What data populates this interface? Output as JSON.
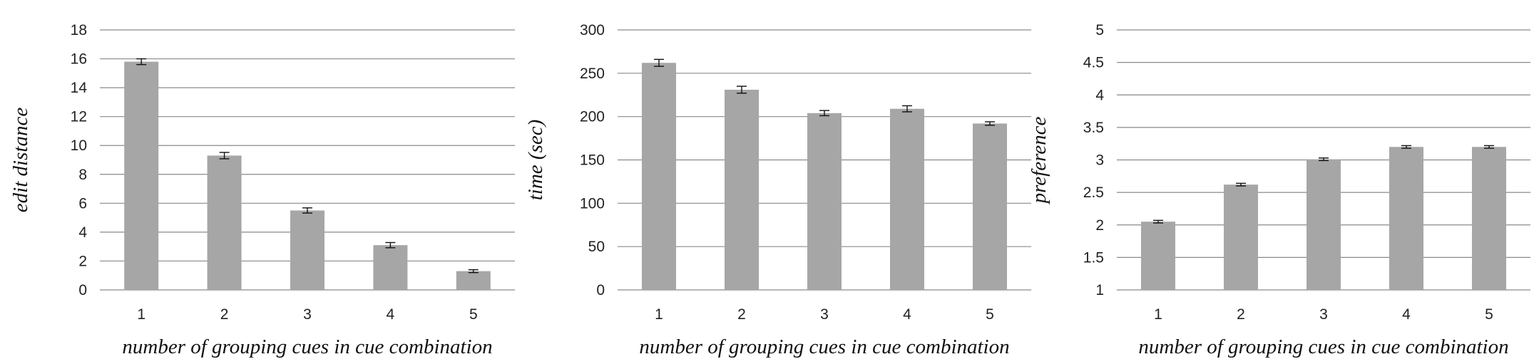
{
  "chart_data": [
    {
      "type": "bar",
      "categories": [
        "1",
        "2",
        "3",
        "4",
        "5"
      ],
      "values": [
        15.8,
        9.3,
        5.5,
        3.1,
        1.3
      ],
      "errors": [
        0.2,
        0.22,
        0.18,
        0.18,
        0.1
      ],
      "ylabel": "edit distance",
      "xlabel": "number of grouping cues in cue combination",
      "ylim": [
        0,
        18
      ],
      "yticks": [
        0,
        2,
        4,
        6,
        8,
        10,
        12,
        14,
        16,
        18
      ],
      "ytick_labels": [
        "0",
        "2",
        "4",
        "6",
        "8",
        "10",
        "12",
        "14",
        "16",
        "18"
      ],
      "grid": true,
      "bar_color": "#a6a6a6"
    },
    {
      "type": "bar",
      "categories": [
        "1",
        "2",
        "3",
        "4",
        "5"
      ],
      "values": [
        262,
        231,
        204,
        209,
        192
      ],
      "errors": [
        4,
        4,
        3,
        3.5,
        2
      ],
      "ylabel": "time (sec)",
      "xlabel": "number of grouping cues in cue combination",
      "ylim": [
        0,
        300
      ],
      "yticks": [
        0,
        50,
        100,
        150,
        200,
        250,
        300
      ],
      "ytick_labels": [
        "0",
        "50",
        "100",
        "150",
        "200",
        "250",
        "300"
      ],
      "grid": true,
      "bar_color": "#a6a6a6"
    },
    {
      "type": "bar",
      "categories": [
        "1",
        "2",
        "3",
        "4",
        "5"
      ],
      "values": [
        2.05,
        2.62,
        3.01,
        3.2,
        3.2
      ],
      "errors": [
        0.02,
        0.02,
        0.02,
        0.02,
        0.02
      ],
      "ylabel": "preference",
      "xlabel": "number of grouping cues in cue combination",
      "ylim": [
        1,
        5
      ],
      "yticks": [
        1,
        1.5,
        2,
        2.5,
        3,
        3.5,
        4,
        4.5,
        5
      ],
      "ytick_labels": [
        "1",
        "1.5",
        "2",
        "2.5",
        "3",
        "3.5",
        "4",
        "4.5",
        "5"
      ],
      "grid": true,
      "bar_color": "#a6a6a6"
    }
  ]
}
